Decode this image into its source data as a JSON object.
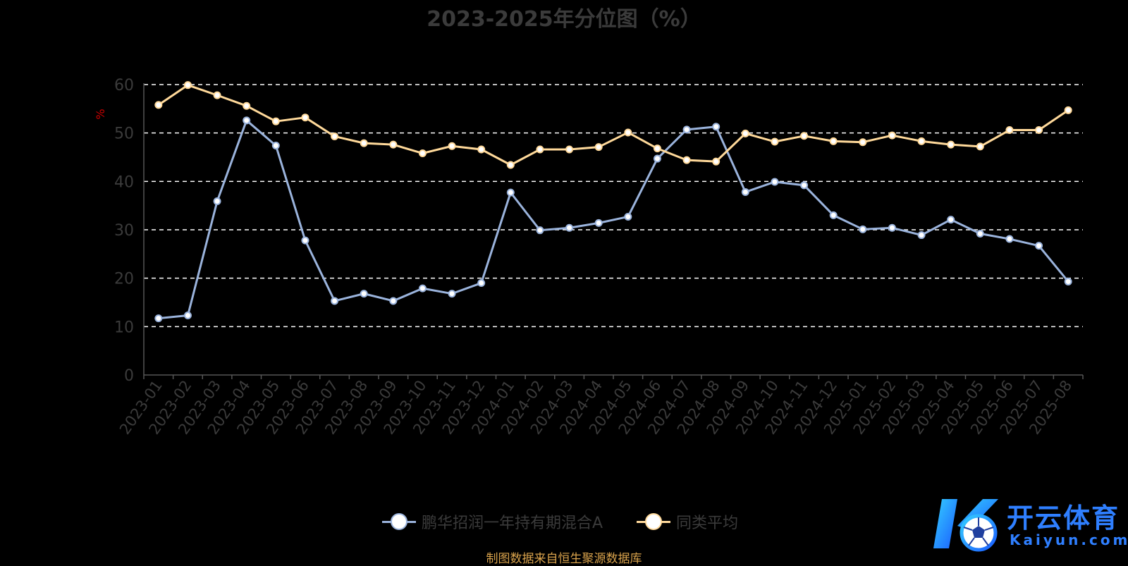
{
  "colors": {
    "background": "#000000",
    "fund_line": "#9ab3dc",
    "avg_line": "#ffd99a",
    "grid": "#ffffff",
    "axis": "#555555",
    "text": "#3b3b3b",
    "source": "#d8a24c",
    "logo": "#2f7fff"
  },
  "source_note": "制图数据来自恒生聚源数据库",
  "logo": {
    "icon": "k-soccer-ball-logo",
    "text_cn": "开云体育",
    "text_en": "Kaiyun.com"
  },
  "chart_data": {
    "type": "line",
    "title": "2023-2025年分位图（%）",
    "ylabel": "%",
    "xlabel": "",
    "ylim": [
      0,
      60
    ],
    "yticks": [
      0,
      10,
      20,
      30,
      40,
      50,
      60
    ],
    "grid": "horizontal dashed",
    "legend_position": "bottom-center",
    "categories": [
      "2023-01",
      "2023-02",
      "2023-03",
      "2023-04",
      "2023-05",
      "2023-06",
      "2023-07",
      "2023-08",
      "2023-09",
      "2023-10",
      "2023-11",
      "2023-12",
      "2024-01",
      "2024-02",
      "2024-03",
      "2024-04",
      "2024-05",
      "2024-06",
      "2024-07",
      "2024-08",
      "2024-09",
      "2024-10",
      "2024-11",
      "2024-12",
      "2025-01",
      "2025-02",
      "2025-03",
      "2025-04",
      "2025-05",
      "2025-06",
      "2025-07",
      "2025-08"
    ],
    "series": [
      {
        "name": "鹏华招润一年持有期混合A",
        "color": "#9ab3dc",
        "values": [
          11.7,
          12.3,
          35.9,
          52.6,
          47.4,
          27.8,
          15.3,
          16.8,
          15.3,
          17.9,
          16.8,
          19.0,
          37.7,
          29.9,
          30.4,
          31.4,
          32.7,
          44.7,
          50.7,
          51.3,
          37.8,
          39.9,
          39.2,
          33.0,
          30.1,
          30.4,
          28.9,
          32.1,
          29.2,
          28.1,
          26.7,
          19.3
        ]
      },
      {
        "name": "同类平均",
        "color": "#ffd99a",
        "values": [
          55.8,
          59.9,
          57.8,
          55.6,
          52.4,
          53.2,
          49.3,
          47.9,
          47.6,
          45.8,
          47.3,
          46.6,
          43.4,
          46.6,
          46.6,
          47.1,
          50.1,
          46.8,
          44.4,
          44.1,
          49.9,
          48.2,
          49.4,
          48.3,
          48.1,
          49.5,
          48.3,
          47.6,
          47.2,
          50.6,
          50.6,
          54.7
        ]
      }
    ]
  }
}
